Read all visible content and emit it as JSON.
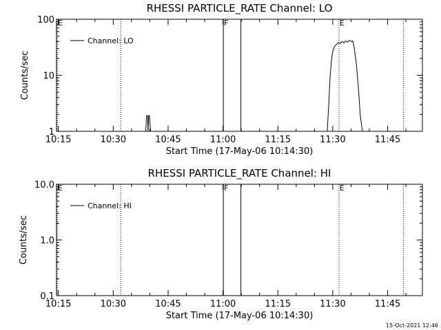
{
  "chart_data": [
    {
      "type": "line",
      "title": "RHESSI PARTICLE_RATE Channel: LO",
      "xlabel": "Start Time (17-May-06 10:14:30)",
      "ylabel": "Counts/sec",
      "yscale": "log",
      "ylim": [
        1,
        100
      ],
      "xlim": [
        "10:14:30",
        "11:54:30"
      ],
      "xticks": [
        "10:15",
        "10:30",
        "10:45",
        "11:00",
        "11:15",
        "11:30",
        "11:45"
      ],
      "yticks": [
        "1",
        "10",
        "100"
      ],
      "grid": false,
      "legend": {
        "position": "top-left",
        "label": "Channel: LO"
      },
      "series": [
        {
          "name": "Channel: LO",
          "points": [
            [
              "10:38:54",
              1
            ],
            [
              "10:39:06",
              1.9
            ],
            [
              "10:39:24",
              1.9
            ],
            [
              "10:39:30",
              1
            ],
            [
              "10:39:42",
              1.9
            ],
            [
              "10:39:54",
              1.9
            ],
            [
              "10:40:12",
              1
            ],
            [
              "11:28:30",
              1
            ],
            [
              "11:28:54",
              3
            ],
            [
              "11:29:18",
              10
            ],
            [
              "11:29:42",
              20
            ],
            [
              "11:30:06",
              28
            ],
            [
              "11:30:30",
              33
            ],
            [
              "11:31:06",
              36
            ],
            [
              "11:31:30",
              38
            ],
            [
              "11:32:06",
              37
            ],
            [
              "11:32:30",
              40
            ],
            [
              "11:33:06",
              38
            ],
            [
              "11:33:30",
              41
            ],
            [
              "11:34:06",
              39
            ],
            [
              "11:34:30",
              42
            ],
            [
              "11:35:06",
              40
            ],
            [
              "11:35:30",
              41
            ],
            [
              "11:35:54",
              30
            ],
            [
              "11:36:30",
              15
            ],
            [
              "11:37:06",
              5
            ],
            [
              "11:37:30",
              2
            ],
            [
              "11:38:06",
              1
            ]
          ]
        }
      ],
      "vlines": [
        {
          "t": "10:14:42",
          "style": "dotted",
          "label": "E"
        },
        {
          "t": "10:32:06",
          "style": "dotted",
          "label": ""
        },
        {
          "t": "11:00:06",
          "style": "solid",
          "label": "F"
        },
        {
          "t": "11:04:54",
          "style": "solid",
          "label": ""
        },
        {
          "t": "11:31:42",
          "style": "dotted",
          "label": "E"
        },
        {
          "t": "11:49:18",
          "style": "dotted",
          "label": ""
        }
      ]
    },
    {
      "type": "line",
      "title": "RHESSI PARTICLE_RATE Channel: HI",
      "xlabel": "Start Time (17-May-06 10:14:30)",
      "ylabel": "Counts/sec",
      "yscale": "log",
      "ylim": [
        0.1,
        10
      ],
      "xlim": [
        "10:14:30",
        "11:54:30"
      ],
      "xticks": [
        "10:15",
        "10:30",
        "10:45",
        "11:00",
        "11:15",
        "11:30",
        "11:45"
      ],
      "yticks": [
        "0.1",
        "1.0",
        "10.0"
      ],
      "grid": false,
      "legend": {
        "position": "top-left",
        "label": "Channel: HI"
      },
      "series": [
        {
          "name": "Channel: HI",
          "points": []
        }
      ],
      "vlines": [
        {
          "t": "10:14:42",
          "style": "dotted",
          "label": "E"
        },
        {
          "t": "10:32:06",
          "style": "dotted",
          "label": ""
        },
        {
          "t": "11:00:06",
          "style": "solid",
          "label": "F"
        },
        {
          "t": "11:04:54",
          "style": "solid",
          "label": ""
        },
        {
          "t": "11:31:42",
          "style": "dotted",
          "label": "E"
        },
        {
          "t": "11:49:18",
          "style": "dotted",
          "label": ""
        }
      ]
    }
  ],
  "footer": {
    "timestamp": "15-Oct-2021 12:46"
  }
}
